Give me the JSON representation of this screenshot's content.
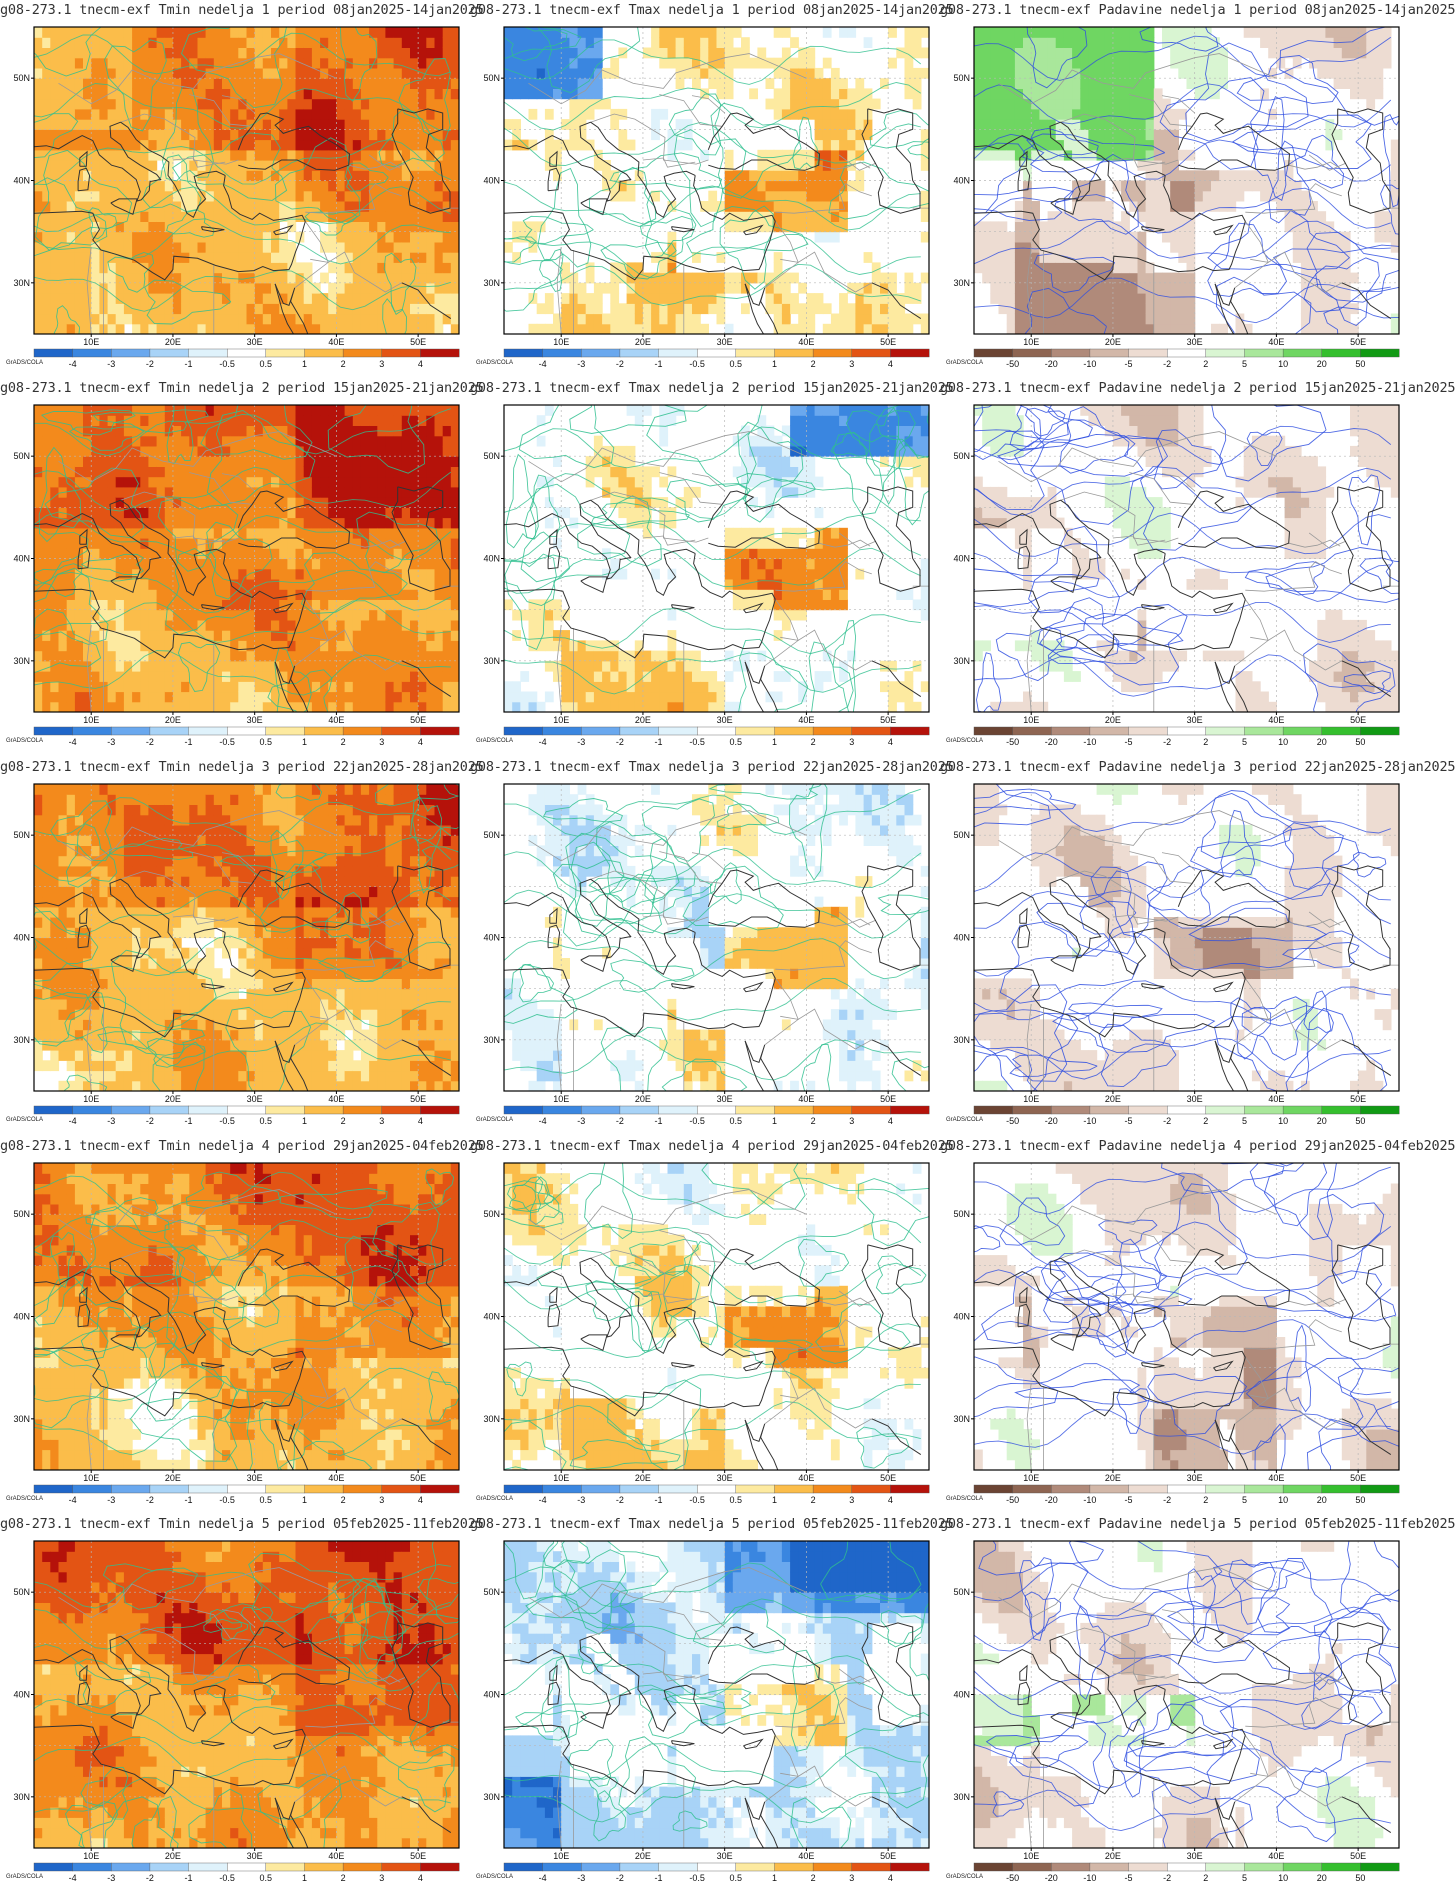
{
  "rows": [
    {
      "panels": [
        {
          "title": "g08-273.1 tnecm-exf Tmin nedelja 1 period 08jan2025-14jan2025",
          "var": "Tmin"
        },
        {
          "title": "g08-273.1 tnecm-exf Tmax nedelja 1 period 08jan2025-14jan2025",
          "var": "Tmax"
        },
        {
          "title": "g08-273.1 tnecm-exf Padavine nedelja 1 period 08jan2025-14jan2025",
          "var": "Padavine"
        }
      ]
    },
    {
      "panels": [
        {
          "title": "g08-273.1 tnecm-exf Tmin nedelja 2 period 15jan2025-21jan2025",
          "var": "Tmin"
        },
        {
          "title": "g08-273.1 tnecm-exf Tmax nedelja 2 period 15jan2025-21jan2025",
          "var": "Tmax"
        },
        {
          "title": "g08-273.1 tnecm-exf Padavine nedelja 2 period 15jan2025-21jan2025",
          "var": "Padavine"
        }
      ]
    },
    {
      "panels": [
        {
          "title": "g08-273.1 tnecm-exf Tmin nedelja 3 period 22jan2025-28jan2025",
          "var": "Tmin"
        },
        {
          "title": "g08-273.1 tnecm-exf Tmax nedelja 3 period 22jan2025-28jan2025",
          "var": "Tmax"
        },
        {
          "title": "g08-273.1 tnecm-exf Padavine nedelja 3 period 22jan2025-28jan2025",
          "var": "Padavine"
        }
      ]
    },
    {
      "panels": [
        {
          "title": "g08-273.1 tnecm-exf Tmin nedelja 4 period 29jan2025-04feb2025",
          "var": "Tmin"
        },
        {
          "title": "g08-273.1 tnecm-exf Tmax nedelja 4 period 29jan2025-04feb2025",
          "var": "Tmax"
        },
        {
          "title": "g08-273.1 tnecm-exf Padavine nedelja 4 period 29jan2025-04feb2025",
          "var": "Padavine"
        }
      ]
    },
    {
      "panels": [
        {
          "title": "g08-273.1 tnecm-exf Tmin nedelja 5 period 05feb2025-11feb2025",
          "var": "Tmin"
        },
        {
          "title": "g08-273.1 tnecm-exf Tmax nedelja 5 period 05feb2025-11feb2025",
          "var": "Tmax"
        },
        {
          "title": "g08-273.1 tnecm-exf Padavine nedelja 5 period 05feb2025-11feb2025",
          "var": "Padavine"
        }
      ]
    }
  ],
  "axes": {
    "lon_labels": [
      "10E",
      "20E",
      "30E",
      "40E",
      "50E"
    ],
    "lat_labels": [
      "50N",
      "40N",
      "30N"
    ]
  },
  "legends": {
    "temperature": {
      "labels": [
        "-4",
        "-3",
        "-2",
        "-1",
        "-0.5",
        "0.5",
        "1",
        "2",
        "3",
        "4"
      ],
      "colors": [
        "#1f66c9",
        "#3a86e0",
        "#6aa8ee",
        "#a8d3f7",
        "#dff2fb",
        "#ffffff",
        "#fdeaa0",
        "#fbbd4a",
        "#f38a1c",
        "#e35414",
        "#b5120a"
      ]
    },
    "precipitation": {
      "labels": [
        "-50",
        "-20",
        "-10",
        "-5",
        "-2",
        "2",
        "5",
        "10",
        "20",
        "50"
      ],
      "colors": [
        "#6b4433",
        "#8e6552",
        "#b08a7a",
        "#d2b7a8",
        "#eddcd2",
        "#ffffff",
        "#d9f5d2",
        "#a9e79b",
        "#6fd662",
        "#35bf2e",
        "#119a14"
      ]
    },
    "source_label": "GrADS/COLA"
  },
  "colors": {
    "temp_contour": "#2fbf8f",
    "precip_contour": "#2f4fe0",
    "coast": "#333333",
    "border": "#9a9a9a",
    "grid": "#b8b8b8"
  }
}
